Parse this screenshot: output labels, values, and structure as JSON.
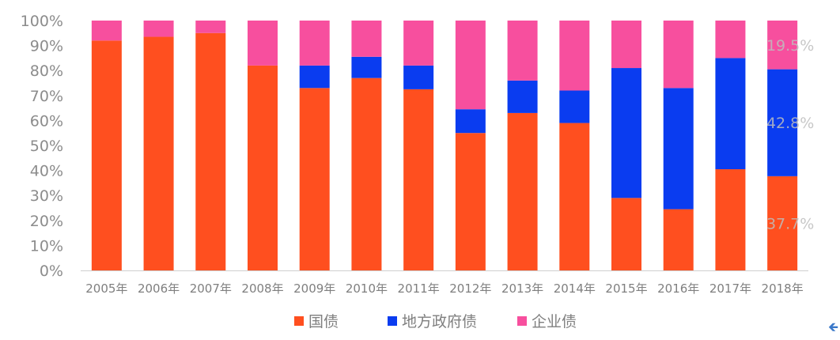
{
  "chart_data": {
    "type": "bar",
    "stacked": true,
    "title": "",
    "xlabel": "",
    "ylabel": "",
    "ylim": [
      0,
      100
    ],
    "yticks": [
      "0%",
      "10%",
      "20%",
      "30%",
      "40%",
      "50%",
      "60%",
      "70%",
      "80%",
      "90%",
      "100%"
    ],
    "categories": [
      "2005年",
      "2006年",
      "2007年",
      "2008年",
      "2009年",
      "2010年",
      "2011年",
      "2012年",
      "2013年",
      "2014年",
      "2015年",
      "2016年",
      "2017年",
      "2018年"
    ],
    "series": [
      {
        "name": "国债",
        "color": "#ff4f1f",
        "values": [
          92,
          93.5,
          95,
          82,
          73,
          77,
          72.5,
          55,
          63,
          59,
          29,
          24.5,
          40.5,
          37.7
        ]
      },
      {
        "name": "地方政府债",
        "color": "#0a3cf0",
        "values": [
          0,
          0,
          0,
          0,
          9,
          8.5,
          9.5,
          9.5,
          13,
          13,
          52,
          48.5,
          44.5,
          42.8
        ]
      },
      {
        "name": "企业债",
        "color": "#f74f9e",
        "values": [
          8,
          6.5,
          5,
          18,
          18,
          14.5,
          18,
          35.5,
          24,
          28,
          19,
          27,
          15,
          19.5
        ]
      }
    ],
    "data_labels": [
      "19.5%",
      "42.8%",
      "37.7%"
    ],
    "grid": false,
    "legend_position": "bottom"
  },
  "icons": {
    "corner": "arrow-left-icon"
  }
}
